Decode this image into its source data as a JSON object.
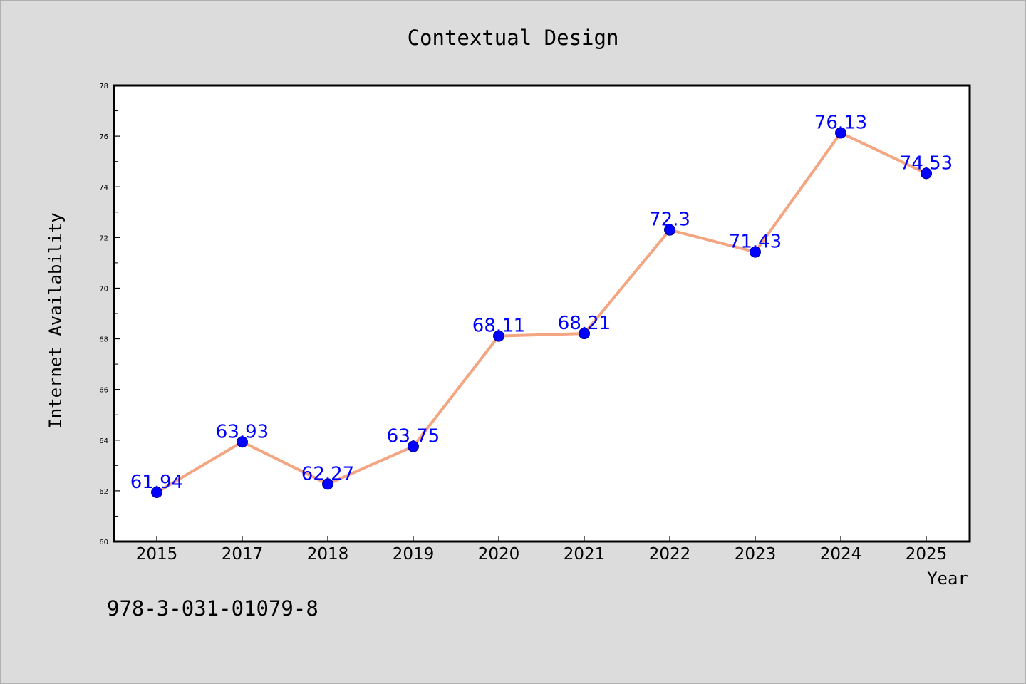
{
  "chart_data": {
    "type": "line",
    "title": "Contextual Design",
    "xlabel": "Year",
    "ylabel": "Internet Availability",
    "categories": [
      "2015",
      "2017",
      "2018",
      "2019",
      "2020",
      "2021",
      "2022",
      "2023",
      "2024",
      "2025"
    ],
    "values": [
      61.94,
      63.93,
      62.27,
      63.75,
      68.11,
      68.21,
      72.3,
      71.43,
      76.13,
      74.53
    ],
    "data_labels": [
      "61.94",
      "63.93",
      "62.27",
      "63.75",
      "68.11",
      "68.21",
      "72.3",
      "71.43",
      "76.13",
      "74.53"
    ],
    "ylim": [
      60,
      78
    ],
    "yticks": [
      "60",
      "62",
      "64",
      "66",
      "68",
      "70",
      "72",
      "74",
      "76",
      "78"
    ],
    "grid": false,
    "line_color": "#f4a582",
    "marker_color": "#0000ff",
    "label_color": "#0000ff",
    "background": "#dcdcdc"
  },
  "footnote": "978-3-031-01079-8"
}
